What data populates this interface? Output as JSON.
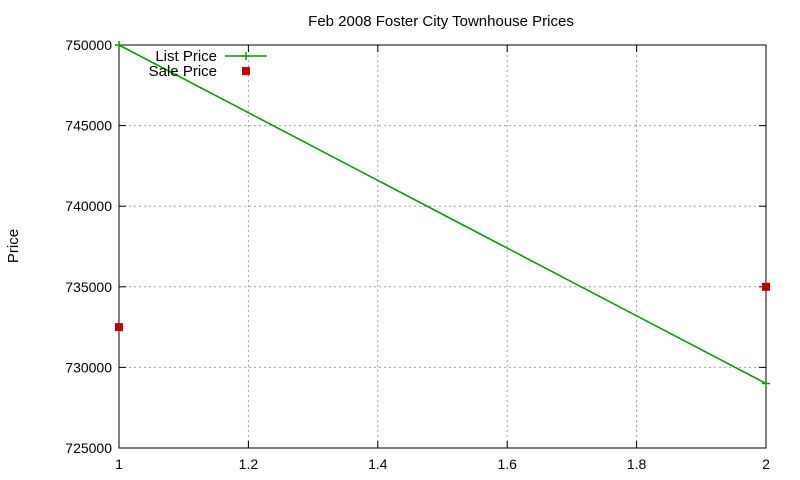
{
  "chart_data": {
    "type": "line",
    "title": "Feb 2008 Foster City Townhouse Prices",
    "xlabel": "",
    "ylabel": "Price",
    "xlim": [
      1,
      2
    ],
    "ylim": [
      725000,
      750000
    ],
    "xticks": [
      "1",
      "1.2",
      "1.4",
      "1.6",
      "1.8",
      "2"
    ],
    "yticks": [
      "725000",
      "730000",
      "735000",
      "740000",
      "745000",
      "750000"
    ],
    "grid": true,
    "legend_position": "top-left",
    "series": [
      {
        "name": "List Price",
        "style": "linespoints",
        "marker": "plus",
        "color": "#00a000",
        "x": [
          1,
          2
        ],
        "y": [
          750000,
          729000
        ]
      },
      {
        "name": "Sale Price",
        "style": "points",
        "marker": "square",
        "color": "#c00000",
        "x": [
          1,
          2
        ],
        "y": [
          732500,
          735000
        ]
      }
    ]
  }
}
